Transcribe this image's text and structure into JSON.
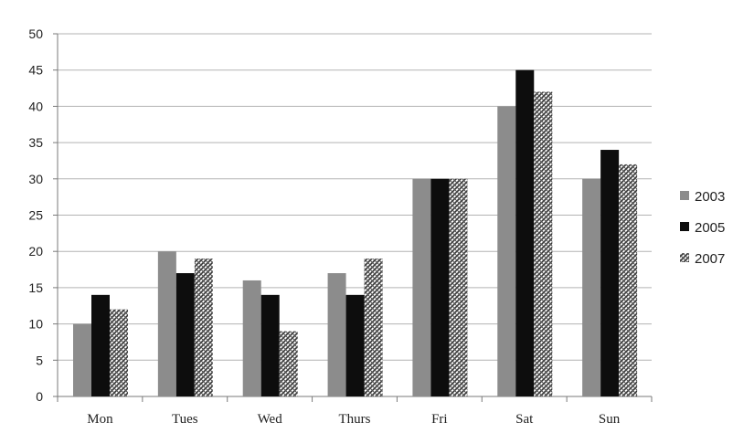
{
  "chart_data": {
    "type": "bar",
    "categories": [
      "Mon",
      "Tues",
      "Wed",
      "Thurs",
      "Fri",
      "Sat",
      "Sun"
    ],
    "series": [
      {
        "name": "2003",
        "values": [
          10,
          20,
          16,
          17,
          30,
          40,
          30
        ],
        "color": "#8c8c8c",
        "pattern": "solid"
      },
      {
        "name": "2005",
        "values": [
          14,
          17,
          14,
          14,
          30,
          45,
          34
        ],
        "color": "#0d0d0d",
        "pattern": "solid"
      },
      {
        "name": "2007",
        "values": [
          12,
          19,
          9,
          19,
          30,
          42,
          32
        ],
        "color": "#444444",
        "pattern": "crosshatch"
      }
    ],
    "ylim": [
      0,
      50
    ],
    "yticks": [
      0,
      5,
      10,
      15,
      20,
      25,
      30,
      35,
      40,
      45,
      50
    ],
    "grid": true,
    "legend": "right"
  }
}
